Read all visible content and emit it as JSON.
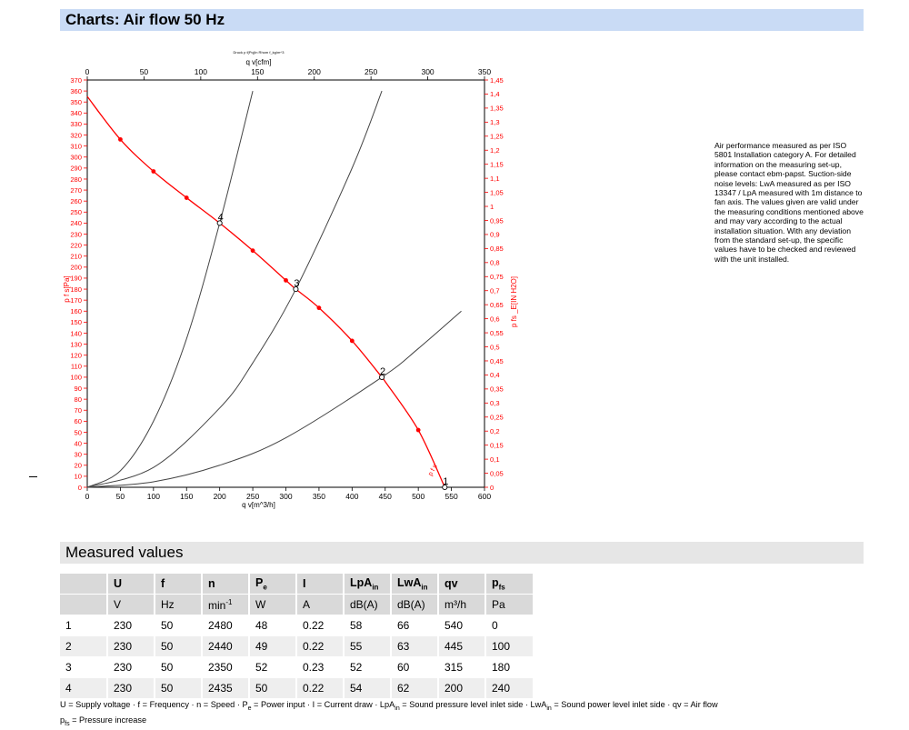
{
  "page": {
    "charts_title": "Charts: Air flow 50 Hz",
    "measured_title": "Measured values"
  },
  "note": "Air performance measured as per ISO 5801 Installation category A. For detailed information on the measuring set-up, please contact ebm-papst. Suction-side noise levels: LwA measured as per ISO 13347 / LpA measured with 1m distance to fan axis. The values given are valid under the measuring conditions mentioned above and may vary according to the actual installation situation. With any deviation from the standard set-up, the specific values have to be checked and reviewed with the unit installed.",
  "chart_data": {
    "type": "line",
    "small_caption": "Druck p f(Pq)In Rhom f_kg/m^3",
    "x_bottom_label": "q v[m^3/h]",
    "x_top_label": "q v[cfm]",
    "y_left_label": "p f s[Pa]",
    "y_right_label": "p fs _E[IN H2O]",
    "xlim": [
      0,
      600
    ],
    "x_top_lim": [
      0,
      350
    ],
    "ylim": [
      0,
      370
    ],
    "y_right_lim": [
      0,
      1.45
    ],
    "x_ticks": [
      0,
      50,
      100,
      150,
      200,
      250,
      300,
      350,
      400,
      450,
      500,
      550,
      600
    ],
    "x_top_ticks": [
      0,
      50,
      100,
      150,
      200,
      250,
      300,
      350
    ],
    "y_ticks_step": 10,
    "y_right_ticks": [
      "0",
      "0,05",
      "0,1",
      "0,15",
      "0,2",
      "0,25",
      "0,3",
      "0,35",
      "0,4",
      "0,45",
      "0,5",
      "0,55",
      "0,6",
      "0,65",
      "0,7",
      "0,75",
      "0,8",
      "0,85",
      "0,9",
      "0,95",
      "1",
      "1,05",
      "1,1",
      "1,15",
      "1,2",
      "1,25",
      "1,3",
      "1,35",
      "1,4",
      "1,45"
    ],
    "grid": false,
    "fan_curve": {
      "name": "p f s",
      "color": "#ff0000",
      "points": [
        [
          0,
          355
        ],
        [
          50,
          316
        ],
        [
          100,
          287
        ],
        [
          150,
          263
        ],
        [
          200,
          240
        ],
        [
          250,
          215
        ],
        [
          300,
          188
        ],
        [
          315,
          180
        ],
        [
          350,
          163
        ],
        [
          400,
          133
        ],
        [
          445,
          100
        ],
        [
          450,
          96
        ],
        [
          500,
          52
        ],
        [
          540,
          0
        ]
      ],
      "markers": [
        [
          50,
          316
        ],
        [
          100,
          287
        ],
        [
          150,
          263
        ],
        [
          250,
          215
        ],
        [
          300,
          188
        ],
        [
          350,
          163
        ],
        [
          400,
          133
        ],
        [
          500,
          52
        ]
      ]
    },
    "system_curves": [
      {
        "color": "#444444",
        "points": [
          [
            0,
            0
          ],
          [
            50,
            15
          ],
          [
            100,
            60
          ],
          [
            150,
            135
          ],
          [
            200,
            240
          ],
          [
            250,
            360
          ]
        ]
      },
      {
        "color": "#444444",
        "points": [
          [
            0,
            0
          ],
          [
            100,
            18
          ],
          [
            200,
            72
          ],
          [
            250,
            113
          ],
          [
            315,
            180
          ],
          [
            400,
            290
          ],
          [
            445,
            360
          ]
        ]
      },
      {
        "color": "#444444",
        "points": [
          [
            0,
            0
          ],
          [
            100,
            5
          ],
          [
            200,
            20
          ],
          [
            300,
            45
          ],
          [
            445,
            100
          ],
          [
            500,
            126
          ],
          [
            565,
            160
          ]
        ]
      }
    ],
    "operating_points": [
      {
        "label": "1",
        "x": 540,
        "y": 0
      },
      {
        "label": "2",
        "x": 445,
        "y": 100
      },
      {
        "label": "3",
        "x": 315,
        "y": 180
      },
      {
        "label": "4",
        "x": 200,
        "y": 240
      }
    ]
  },
  "table": {
    "headers": [
      "",
      "U",
      "f",
      "n",
      "P",
      "I",
      "LpA",
      "LwA",
      "qv",
      "p"
    ],
    "header_subs": [
      "",
      "",
      "",
      "",
      "e",
      "",
      "in",
      "in",
      "",
      "fs"
    ],
    "units": [
      "",
      "V",
      "Hz",
      "min",
      "W",
      "A",
      "dB(A)",
      "dB(A)",
      "m³/h",
      "Pa"
    ],
    "rows": [
      [
        "1",
        "230",
        "50",
        "2480",
        "48",
        "0.22",
        "58",
        "66",
        "540",
        "0"
      ],
      [
        "2",
        "230",
        "50",
        "2440",
        "49",
        "0.22",
        "55",
        "63",
        "445",
        "100"
      ],
      [
        "3",
        "230",
        "50",
        "2350",
        "52",
        "0.23",
        "52",
        "60",
        "315",
        "180"
      ],
      [
        "4",
        "230",
        "50",
        "2435",
        "50",
        "0.22",
        "54",
        "62",
        "200",
        "240"
      ]
    ],
    "unit_sup": "-1"
  },
  "legend": {
    "line1_parts": [
      "U = Supply voltage · f = Frequency · n = Speed · P",
      "e",
      " = Power input · I = Current draw · LpA",
      "in",
      " = Sound pressure level inlet side · LwA",
      "in",
      " = Sound power level inlet side · qv = Air flow"
    ],
    "line2_parts": [
      "p",
      "fs",
      " = Pressure increase"
    ]
  }
}
